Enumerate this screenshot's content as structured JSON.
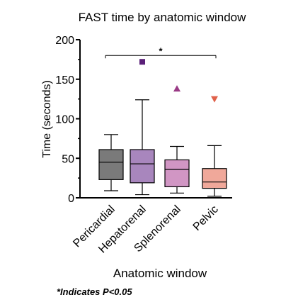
{
  "chart_data": {
    "type": "box",
    "title": "FAST time by anatomic window",
    "xlabel": "Anatomic window",
    "ylabel": "Time (seconds)",
    "ylim": [
      0,
      200
    ],
    "yticks": [
      0,
      50,
      100,
      150,
      200
    ],
    "categories": [
      "Pericardial",
      "Hepatorenal",
      "Splenorenal",
      "Pelvic"
    ],
    "colors": [
      "#7a7a7a",
      "#a886bd",
      "#d196c4",
      "#f0a89a"
    ],
    "boxes": [
      {
        "name": "Pericardial",
        "min": 9,
        "q1": 23,
        "median": 45,
        "q3": 61,
        "max": 80,
        "outlier": null,
        "outlier_marker": "",
        "outlier_color": ""
      },
      {
        "name": "Hepatorenal",
        "min": 4,
        "q1": 19,
        "median": 43,
        "q3": 61,
        "max": 124,
        "outlier": 172,
        "outlier_marker": "square",
        "outlier_color": "#5a1f78"
      },
      {
        "name": "Splenorenal",
        "min": 6,
        "q1": 14,
        "median": 36,
        "q3": 48,
        "max": 65,
        "outlier": 138,
        "outlier_marker": "triangle-up",
        "outlier_color": "#9a3b86"
      },
      {
        "name": "Pelvic",
        "min": 2,
        "q1": 12,
        "median": 20,
        "q3": 37,
        "max": 66,
        "outlier": 125,
        "outlier_marker": "triangle-down",
        "outlier_color": "#e0614a"
      }
    ],
    "significance": {
      "from": "Pericardial",
      "to": "Pelvic",
      "y": 180,
      "label": "*"
    }
  },
  "footnote": "*Indicates P<0.05"
}
